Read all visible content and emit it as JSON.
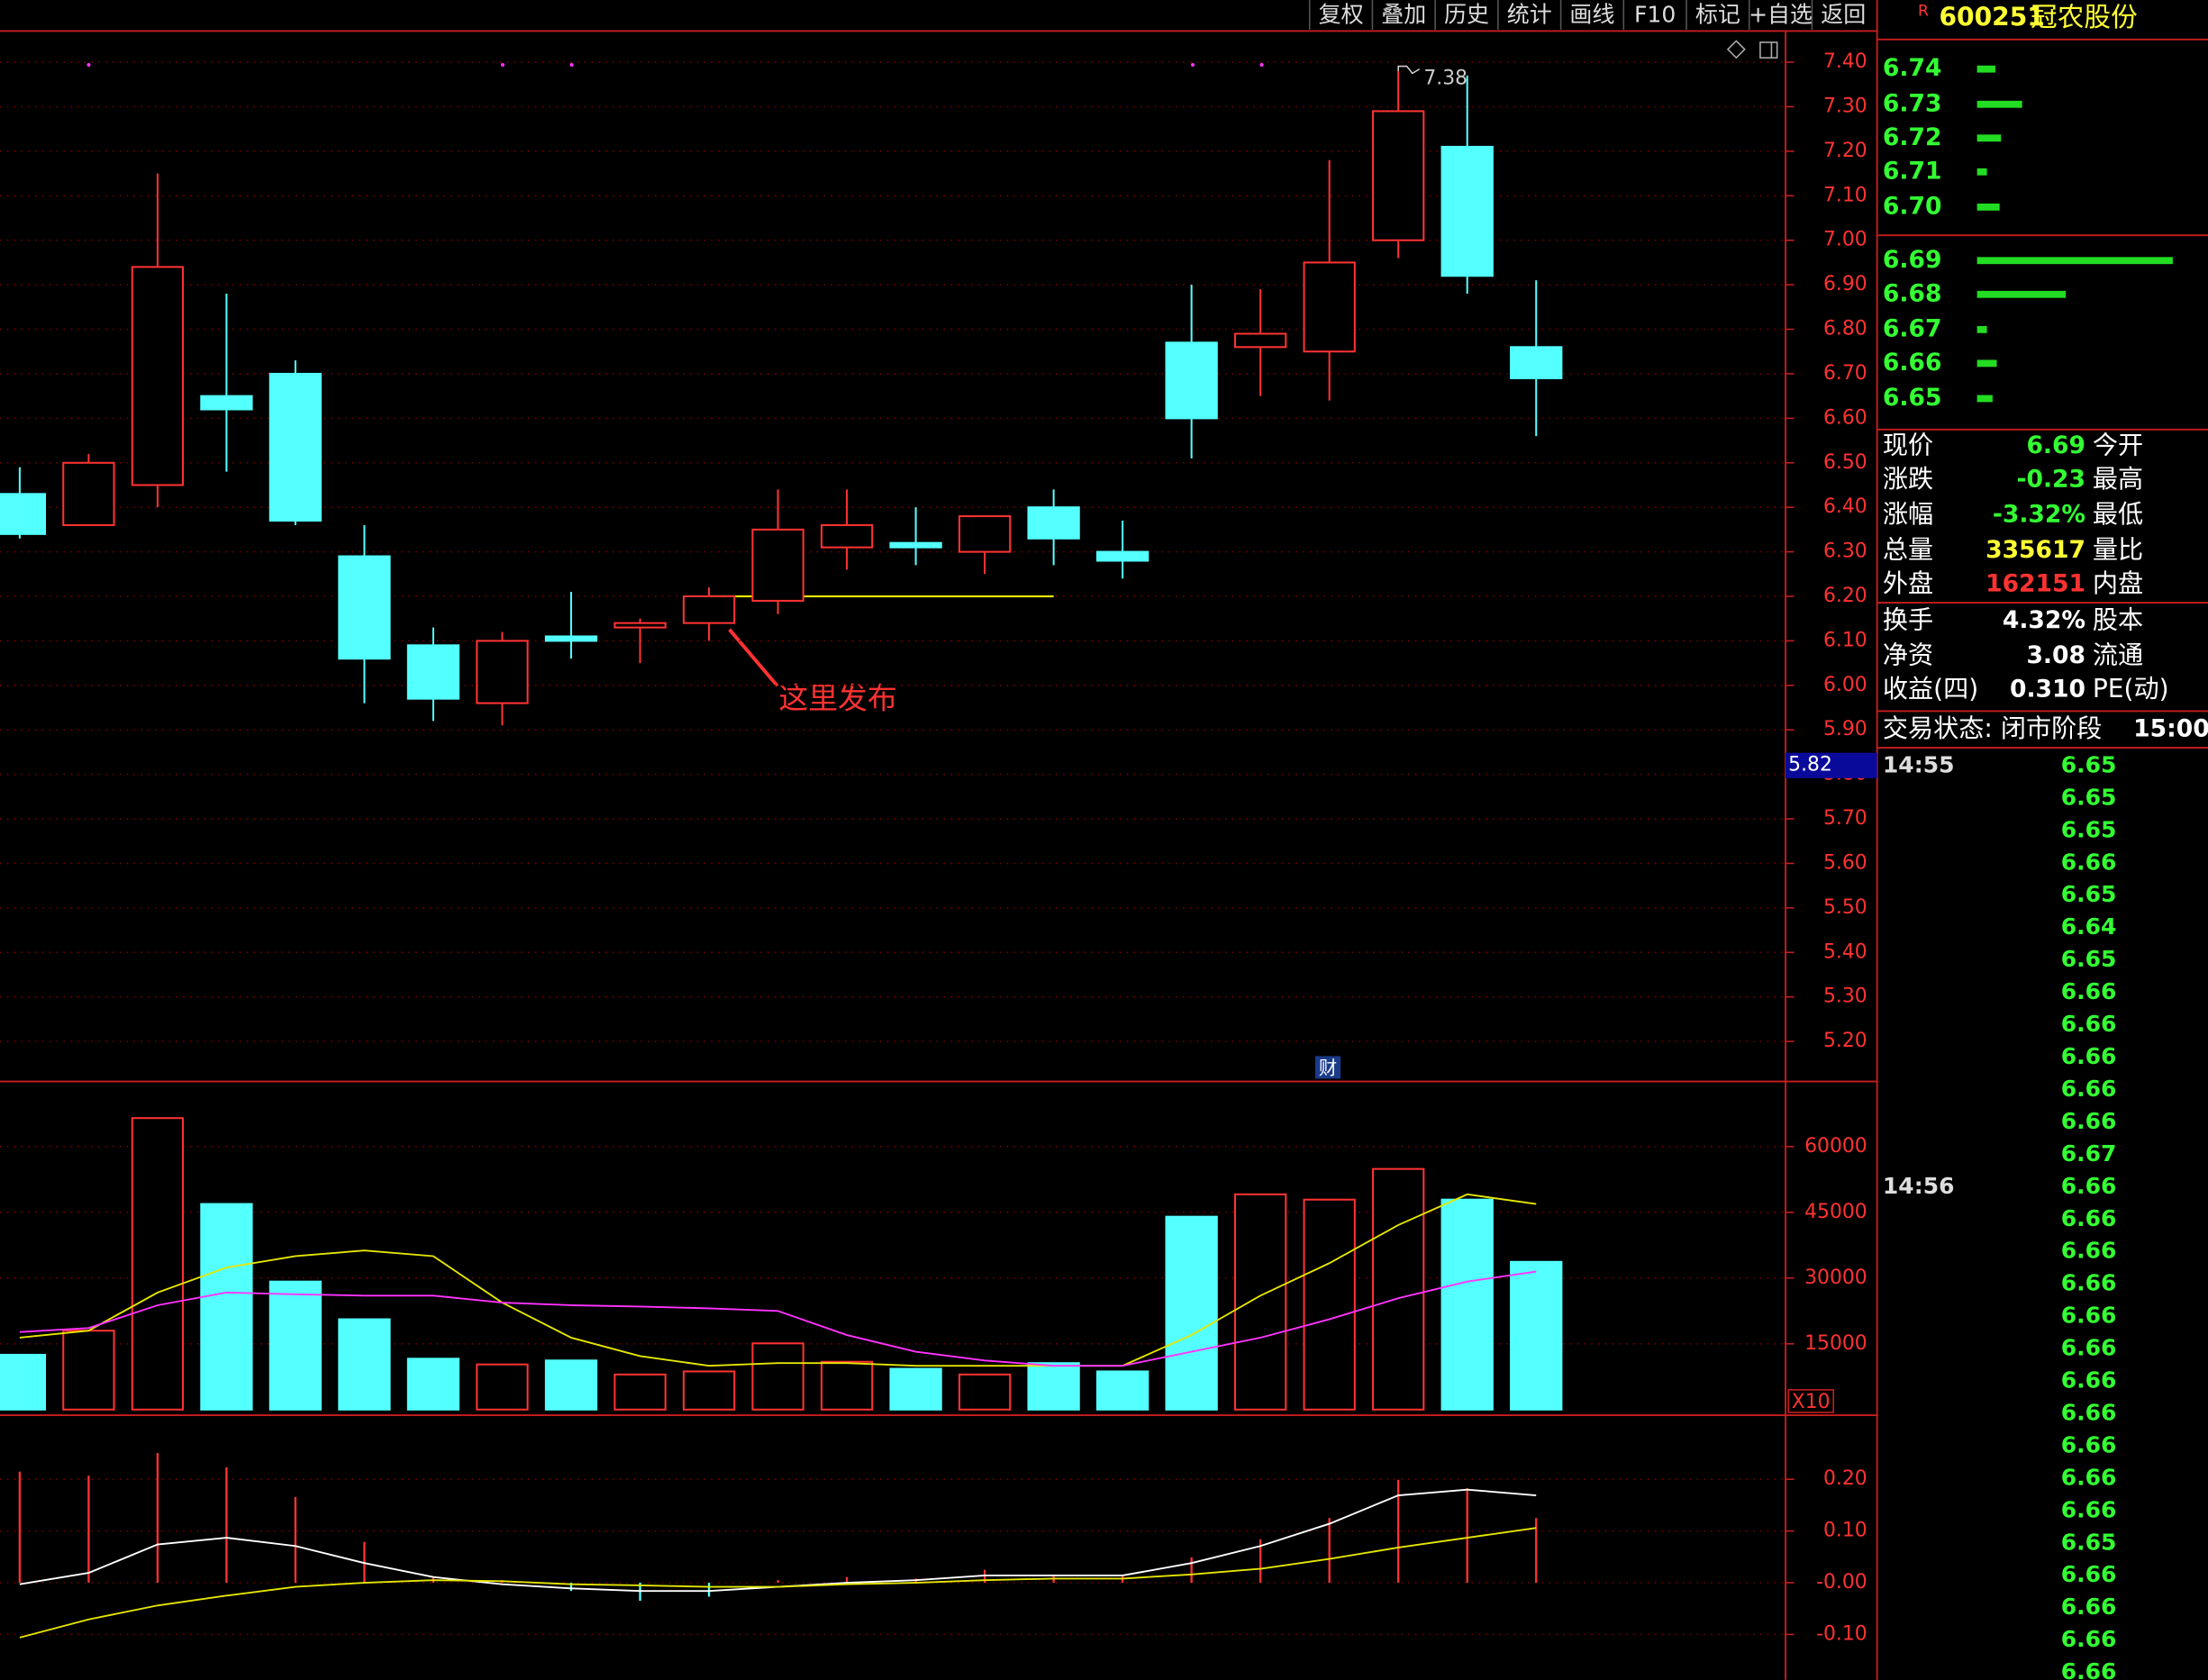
{
  "chart_data": [
    {
      "type": "candlestick",
      "open": [
        6.43,
        6.36,
        6.45,
        6.65,
        6.7,
        6.29,
        6.09,
        5.96,
        6.11,
        6.13,
        6.14,
        6.19,
        6.31,
        6.32,
        6.3,
        6.4,
        6.3,
        6.77,
        6.76,
        6.75,
        7.0,
        7.21,
        6.76
      ],
      "high": [
        6.49,
        6.52,
        7.15,
        6.88,
        6.73,
        6.36,
        6.13,
        6.12,
        6.21,
        6.15,
        6.22,
        6.44,
        6.44,
        6.4,
        6.38,
        6.44,
        6.37,
        6.9,
        6.89,
        7.18,
        7.38,
        7.37,
        6.91
      ],
      "low": [
        6.33,
        6.36,
        6.4,
        6.48,
        6.36,
        5.96,
        5.92,
        5.91,
        6.06,
        6.05,
        6.1,
        6.16,
        6.26,
        6.27,
        6.25,
        6.27,
        6.24,
        6.51,
        6.65,
        6.64,
        6.96,
        6.88,
        6.56
      ],
      "close": [
        6.34,
        6.5,
        6.94,
        6.62,
        6.37,
        6.06,
        5.97,
        6.1,
        6.1,
        6.14,
        6.2,
        6.35,
        6.36,
        6.31,
        6.38,
        6.33,
        6.28,
        6.6,
        6.79,
        6.95,
        7.29,
        6.92,
        6.69
      ],
      "up_color": "#ff3232",
      "down_color": "#54ffff",
      "ylim": [
        5.11,
        7.47
      ],
      "yticks": [
        {
          "value": 7.4,
          "label": "7.40"
        },
        {
          "value": 7.3,
          "label": "7.30"
        },
        {
          "value": 7.2,
          "label": "7.20"
        },
        {
          "value": 7.1,
          "label": "7.10"
        },
        {
          "value": 7.0,
          "label": "7.00"
        },
        {
          "value": 6.9,
          "label": "6.90"
        },
        {
          "value": 6.8,
          "label": "6.80"
        },
        {
          "value": 6.7,
          "label": "6.70"
        },
        {
          "value": 6.6,
          "label": "6.60"
        },
        {
          "value": 6.5,
          "label": "6.50"
        },
        {
          "value": 6.4,
          "label": "6.40"
        },
        {
          "value": 6.3,
          "label": "6.30"
        },
        {
          "value": 6.2,
          "label": "6.20"
        },
        {
          "value": 6.1,
          "label": "6.10"
        },
        {
          "value": 6.0,
          "label": "6.00"
        },
        {
          "value": 5.9,
          "label": "5.90"
        },
        {
          "value": 5.8,
          "label": "5.80"
        },
        {
          "value": 5.7,
          "label": "5.70"
        },
        {
          "value": 5.6,
          "label": "5.60"
        },
        {
          "value": 5.5,
          "label": "5.50"
        },
        {
          "value": 5.4,
          "label": "5.40"
        },
        {
          "value": 5.3,
          "label": "5.30"
        },
        {
          "value": 5.2,
          "label": "5.20"
        }
      ],
      "grid": true,
      "cursor_price": 5.82,
      "horizontal_line": {
        "value": 6.2,
        "color": "#e6e600"
      },
      "annotation": "这里发布",
      "event_marker": "财"
    },
    {
      "type": "volume",
      "values": [
        12500,
        18000,
        66500,
        46900,
        29200,
        20600,
        11600,
        10300,
        11200,
        8000,
        8700,
        15100,
        10900,
        9300,
        8000,
        10600,
        8700,
        44000,
        49100,
        47900,
        54900,
        47900,
        33700
      ],
      "series": [
        {
          "color": "#e6e600",
          "values": [
            16400,
            18000,
            26700,
            32400,
            35000,
            36300,
            35000,
            24400,
            16400,
            12200,
            10000,
            10600,
            10600,
            10000,
            10000,
            10000,
            10000,
            17000,
            26000,
            33400,
            42100,
            49100,
            46900
          ]
        },
        {
          "color": "#ff33ff",
          "values": [
            17700,
            18600,
            23800,
            26700,
            26300,
            26000,
            26000,
            24400,
            23800,
            23500,
            23100,
            22500,
            17000,
            13200,
            11200,
            10000,
            10000,
            13200,
            16400,
            20600,
            25400,
            29200,
            31500
          ]
        }
      ],
      "ylim": [
        0,
        74850
      ],
      "yticks": [
        60000,
        45000,
        30000,
        15000
      ],
      "grid": true,
      "unit_label": "X10"
    },
    {
      "type": "macd",
      "histogram": [
        0.215,
        0.207,
        0.251,
        0.223,
        0.166,
        0.079,
        0.011,
        0.005,
        -0.016,
        -0.035,
        -0.027,
        0.005,
        0.011,
        0.008,
        0.025,
        0.016,
        0.014,
        0.049,
        0.084,
        0.125,
        0.199,
        0.183,
        0.125
      ],
      "series": [
        {
          "color": "#ffffff",
          "values": [
            -0.003,
            0.019,
            0.074,
            0.087,
            0.071,
            0.038,
            0.011,
            -0.003,
            -0.011,
            -0.016,
            -0.016,
            -0.008,
            0,
            0.005,
            0.014,
            0.014,
            0.014,
            0.038,
            0.071,
            0.114,
            0.169,
            0.18,
            0.169
          ]
        },
        {
          "color": "#e6e600",
          "values": [
            -0.106,
            -0.071,
            -0.044,
            -0.025,
            -0.008,
            0,
            0.005,
            0.003,
            -0.003,
            -0.005,
            -0.008,
            -0.008,
            -0.003,
            0,
            0.005,
            0.008,
            0.008,
            0.016,
            0.027,
            0.046,
            0.068,
            0.087,
            0.106
          ]
        }
      ],
      "ylim": [
        -0.188,
        0.324
      ],
      "yticks": [
        {
          "value": 0.2,
          "label": "0.20"
        },
        {
          "value": 0.1,
          "label": "0.10"
        },
        {
          "value": 0,
          "label": "-0.00"
        },
        {
          "value": -0.1,
          "label": "-0.10"
        }
      ],
      "grid": true
    }
  ],
  "toolbar": [
    "复权",
    "叠加",
    "历史",
    "统计",
    "画线",
    "F10",
    "标记",
    "+自选",
    "返回"
  ],
  "stock": {
    "flag": "R",
    "code": "600251",
    "name": "冠农股份"
  },
  "order_book": [
    {
      "price": "6.74",
      "volume": 13
    },
    {
      "price": "6.73",
      "volume": 32
    },
    {
      "price": "6.72",
      "volume": 17
    },
    {
      "price": "6.71",
      "volume": 7
    },
    {
      "price": "6.70",
      "volume": 16
    },
    {
      "price": "6.69",
      "volume": 139
    },
    {
      "price": "6.68",
      "volume": 63
    },
    {
      "price": "6.67",
      "volume": 7
    },
    {
      "price": "6.66",
      "volume": 14
    },
    {
      "price": "6.65",
      "volume": 11
    }
  ],
  "quote": [
    {
      "label": "现价",
      "value": "6.69",
      "color": "#33ff33",
      "right": "今开"
    },
    {
      "label": "涨跌",
      "value": "-0.23",
      "color": "#33ff33",
      "right": "最高"
    },
    {
      "label": "涨幅",
      "value": "-3.32%",
      "color": "#33ff33",
      "right": "最低"
    },
    {
      "label": "总量",
      "value": "335617",
      "color": "#ffff33",
      "right": "量比"
    },
    {
      "label": "外盘",
      "value": "162151",
      "color": "#ff3232",
      "right": "内盘"
    },
    {
      "label": "换手",
      "value": "4.32%",
      "color": "#ffffff",
      "right": "股本"
    },
    {
      "label": "净资",
      "value": "3.08",
      "color": "#ffffff",
      "right": "流通"
    },
    {
      "label": "收益(四)",
      "value": "0.310",
      "color": "#ffffff",
      "right": "PE(动)"
    }
  ],
  "status": {
    "label": "交易状态: 闭市阶段",
    "time": "15:00:"
  },
  "time_sales": [
    {
      "time": "14:55",
      "prices": [
        "6.65",
        "6.65",
        "6.65",
        "6.66",
        "6.65",
        "6.64",
        "6.65",
        "6.66",
        "6.66",
        "6.66",
        "6.66",
        "6.66",
        "6.67"
      ]
    },
    {
      "time": "14:56",
      "prices": [
        "6.66",
        "6.66",
        "6.66",
        "6.66",
        "6.66",
        "6.66",
        "6.66",
        "6.66",
        "6.66",
        "6.66",
        "6.66",
        "6.65",
        "6.66",
        "6.66",
        "6.66",
        "6.66"
      ]
    }
  ]
}
